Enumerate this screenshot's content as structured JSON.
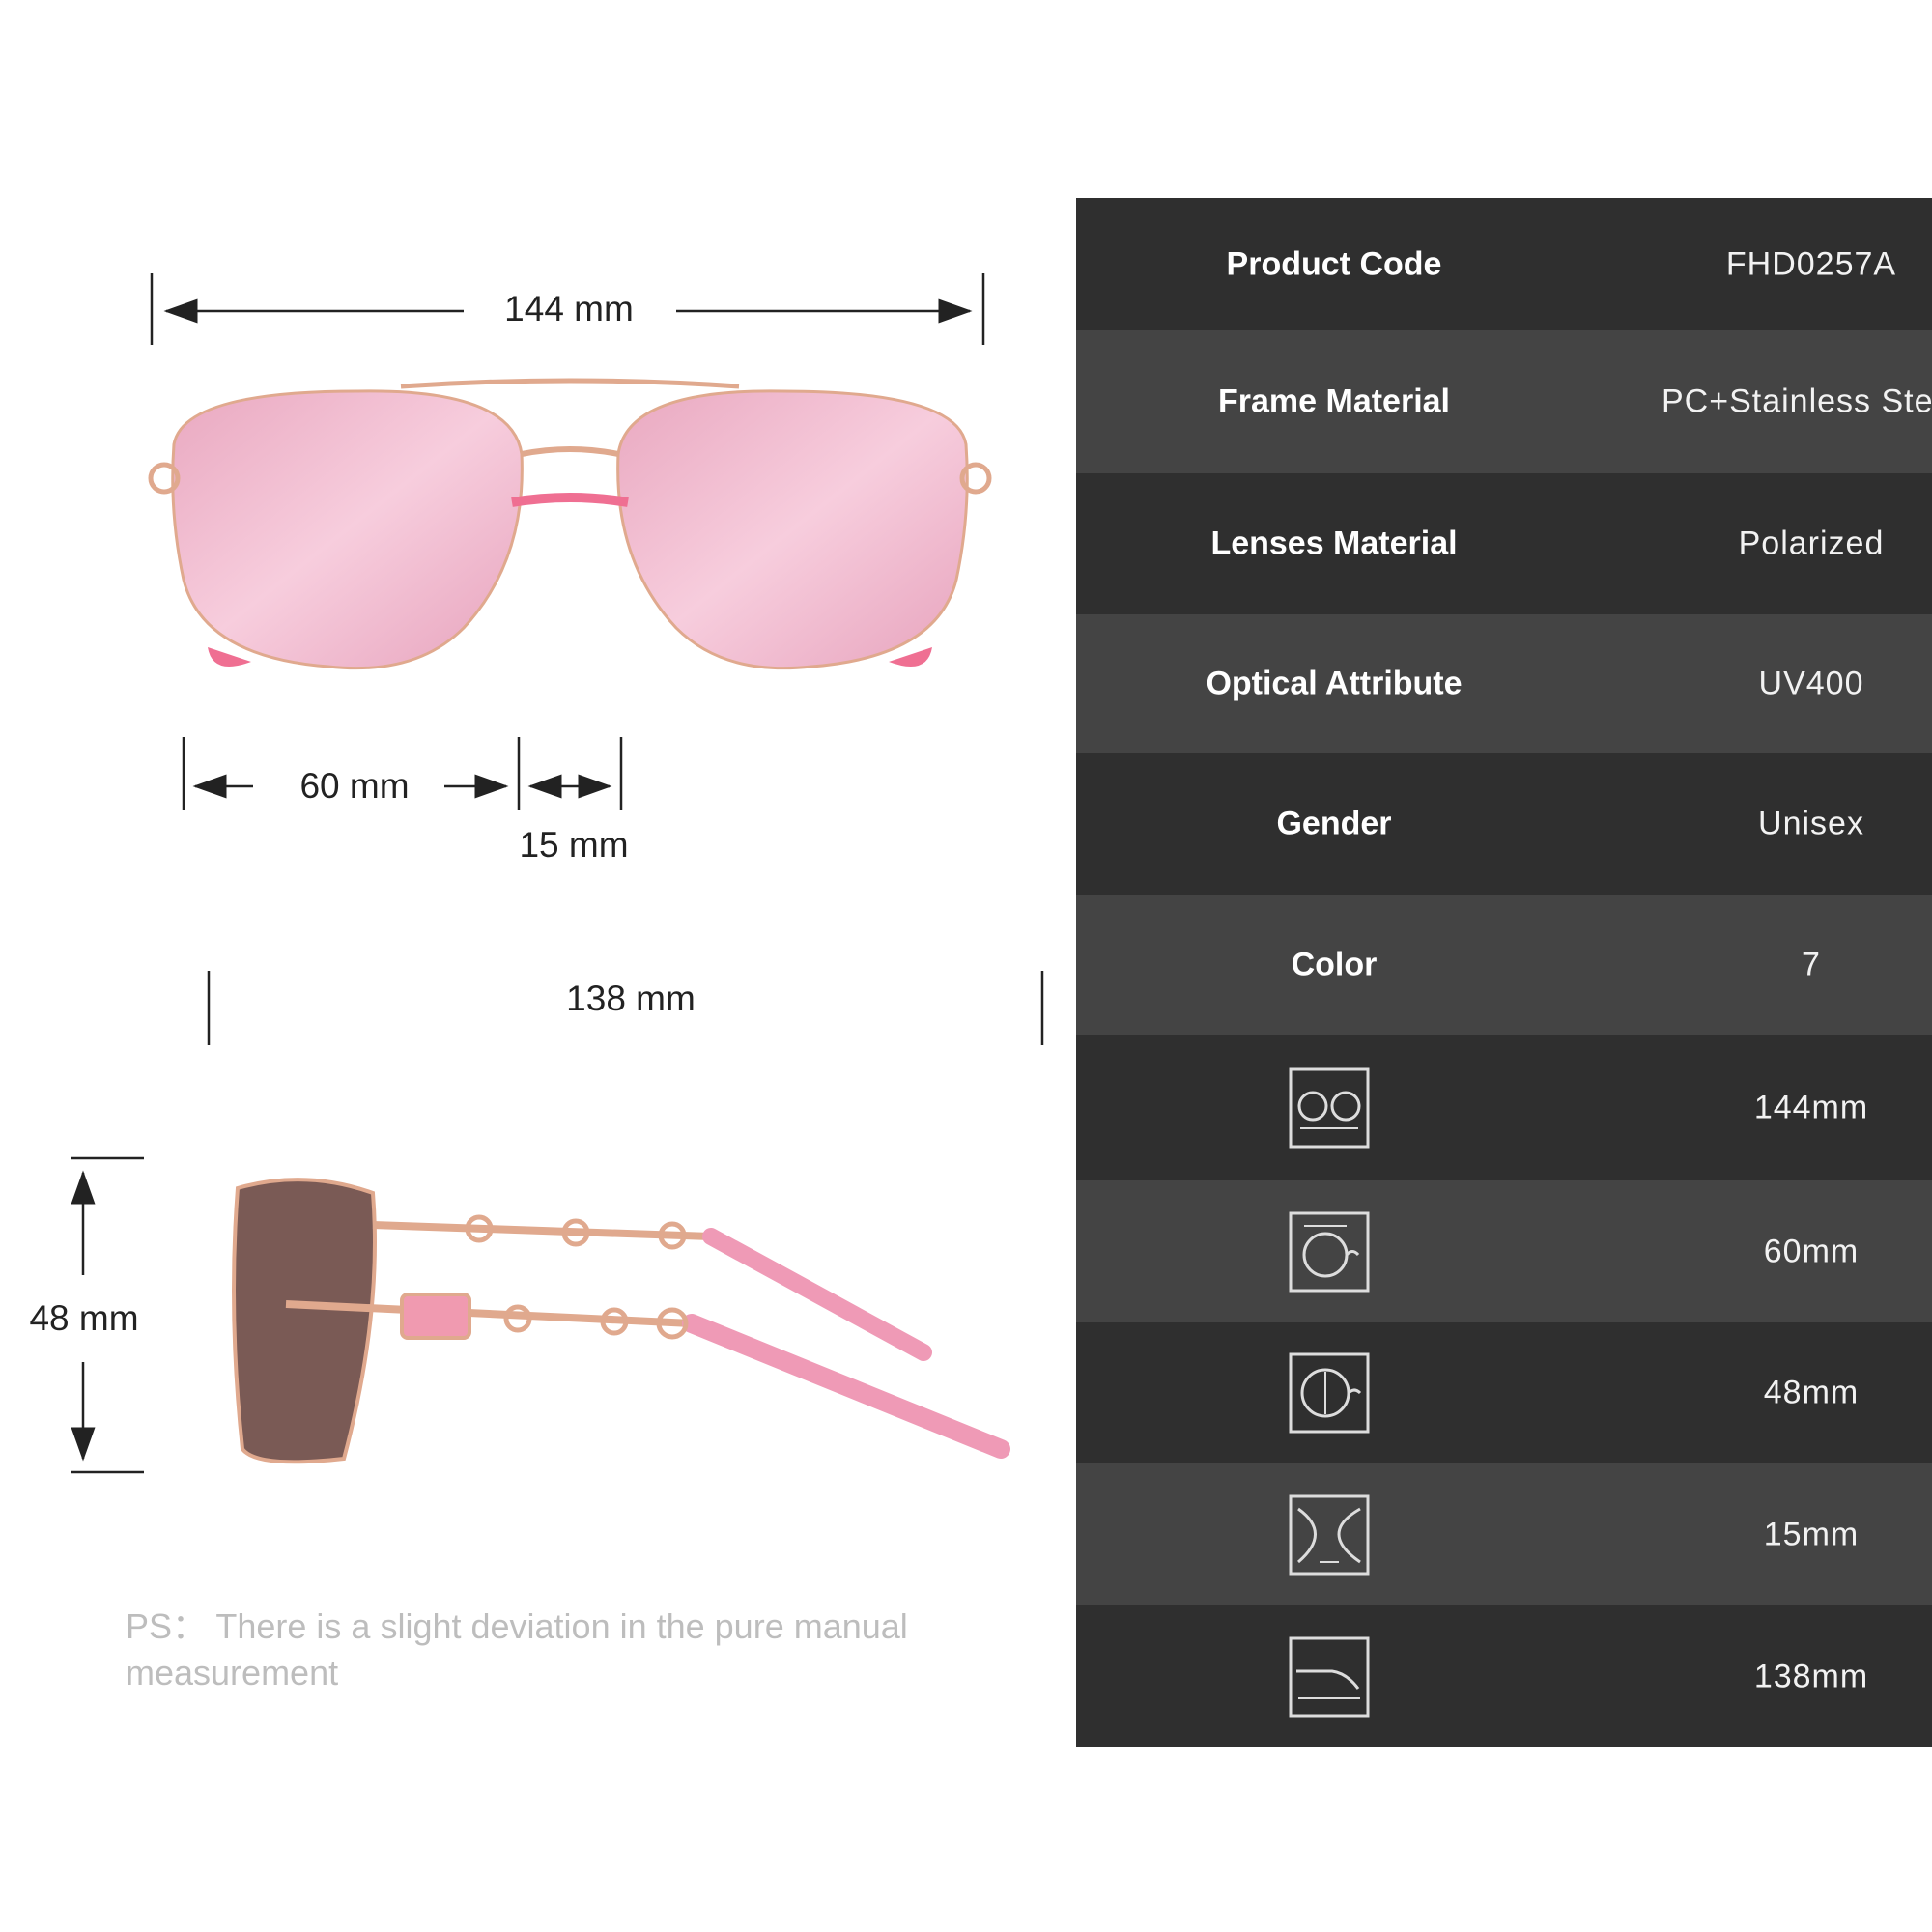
{
  "dimensions": {
    "total_width": "144 mm",
    "lens_width": "60 mm",
    "bridge_width": "15 mm",
    "temple_length": "138 mm",
    "lens_height": "48 mm"
  },
  "spec_table": {
    "rows": [
      {
        "label": "Product Code",
        "value": "FHD0257A"
      },
      {
        "label": "Frame Material",
        "value": "PC+Stainless Steel"
      },
      {
        "label": "Lenses Material",
        "value": "Polarized"
      },
      {
        "label": "Optical Attribute",
        "value": "UV400"
      },
      {
        "label": "Gender",
        "value": "Unisex"
      },
      {
        "label": "Color",
        "value": "7"
      }
    ],
    "measure_rows": [
      {
        "icon": "frame-width-icon",
        "value": "144mm"
      },
      {
        "icon": "lens-width-icon",
        "value": "60mm"
      },
      {
        "icon": "lens-height-icon",
        "value": "48mm"
      },
      {
        "icon": "bridge-width-icon",
        "value": "15mm"
      },
      {
        "icon": "temple-length-icon",
        "value": "138mm"
      }
    ]
  },
  "note": "PS： There is a slight deviation in the pure manual measurement",
  "colors": {
    "lens_pink": "#f0b8cc",
    "frame_gold": "#e0a98e",
    "temple_pink": "#ef8fae",
    "table_dark": "#2f2f2f",
    "table_light": "#444444"
  }
}
